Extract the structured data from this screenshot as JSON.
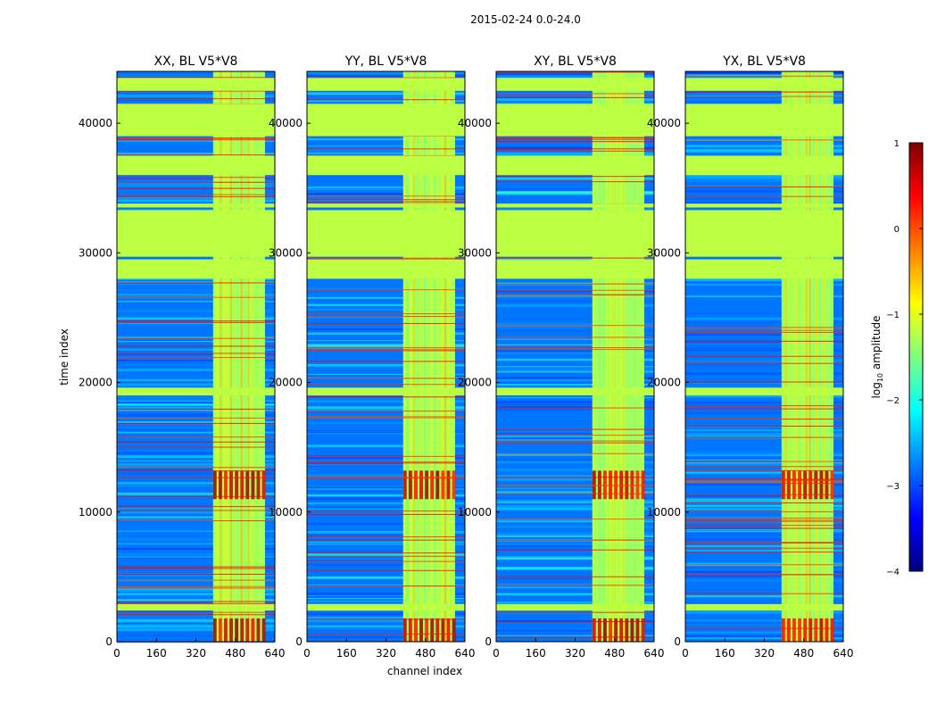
{
  "chart_data": {
    "type": "heatmap",
    "title": "2015-02-24 0.0-24.0",
    "xlabel": "channel index",
    "ylabel": "time index",
    "xlim": [
      0,
      640
    ],
    "ylim": [
      0,
      44000
    ],
    "xticks": [
      "0",
      "160",
      "320",
      "480",
      "640"
    ],
    "yticks": [
      "0",
      "10000",
      "20000",
      "30000",
      "40000"
    ],
    "colorbar": {
      "label": "log10 amplitude",
      "label_main": "log",
      "label_sub": "10",
      "label_rest": " amplitude",
      "range": [
        -4,
        1
      ],
      "ticks": [
        "1",
        "0",
        "−1",
        "−2",
        "−3",
        "−4"
      ],
      "colormap": "jet",
      "stops": [
        "#00007f",
        "#0000ff",
        "#007fff",
        "#00ffff",
        "#7fff7f",
        "#ffff00",
        "#ff7f00",
        "#ff0000",
        "#7f0000"
      ]
    },
    "panels": [
      {
        "title": "XX, BL V5*V8",
        "seed": 11
      },
      {
        "title": "YY, BL V5*V8",
        "seed": 23
      },
      {
        "title": "XY, BL V5*V8",
        "seed": 37
      },
      {
        "title": "YX, BL V5*V8",
        "seed": 53
      }
    ],
    "features": {
      "flagged_bands": [
        [
          42500,
          43500
        ],
        [
          39000,
          41500
        ],
        [
          36000,
          37500
        ],
        [
          33500,
          33800
        ],
        [
          29700,
          33300
        ],
        [
          28000,
          29500
        ],
        [
          19000,
          19600
        ],
        [
          2400,
          2900
        ]
      ],
      "bright_channels": [
        390,
        600
      ],
      "background_level": -2.8,
      "flagged_level": -1.2,
      "burst_rows": [
        [
          11000,
          13200
        ],
        [
          0,
          1800
        ]
      ]
    }
  }
}
